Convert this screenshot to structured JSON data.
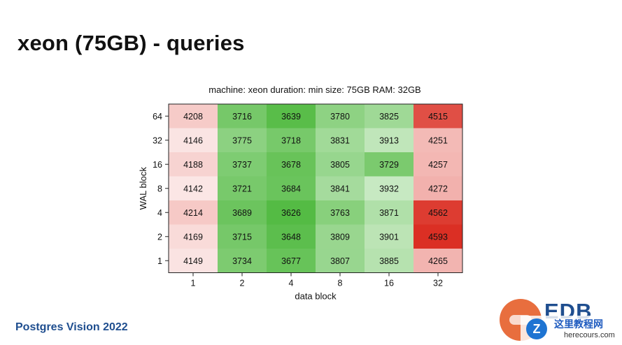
{
  "slide": {
    "title": "xeon (75GB) - queries",
    "footer": "Postgres Vision 2022"
  },
  "logo": {
    "text": "EDB"
  },
  "watermark": {
    "chinese": "这里教程网",
    "domain": "herecours.com"
  },
  "colors": {
    "green": "#54bb44",
    "red": "#db2f24",
    "white": "#ffffff",
    "footer_blue": "#1f4e8f",
    "logo_orange": "#e86e3e"
  },
  "chart_data": {
    "type": "heatmap",
    "title": "machine: xeon  duration: min  size: 75GB  RAM: 32GB",
    "xlabel": "data block",
    "ylabel": "WAL block",
    "x": [
      "1",
      "2",
      "4",
      "8",
      "16",
      "32"
    ],
    "y": [
      "64",
      "32",
      "16",
      "8",
      "4",
      "2",
      "1"
    ],
    "values": [
      [
        4208,
        3716,
        3639,
        3780,
        3825,
        4515
      ],
      [
        4146,
        3775,
        3718,
        3831,
        3913,
        4251
      ],
      [
        4188,
        3737,
        3678,
        3805,
        3729,
        4257
      ],
      [
        4142,
        3721,
        3684,
        3841,
        3932,
        4272
      ],
      [
        4214,
        3689,
        3626,
        3763,
        3871,
        4562
      ],
      [
        4169,
        3715,
        3648,
        3809,
        3901,
        4593
      ],
      [
        4149,
        3734,
        3677,
        3807,
        3885,
        4265
      ]
    ],
    "color_scale": {
      "low": "#54bb44",
      "mid": "#ffffff",
      "high": "#db2f24",
      "midpoint": 4080
    },
    "legend": "none"
  }
}
